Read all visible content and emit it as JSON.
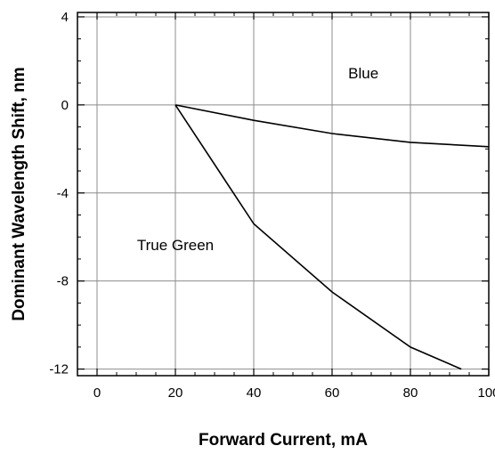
{
  "chart_data": {
    "type": "line",
    "title": "",
    "xlabel": "Forward Current, mA",
    "ylabel": "Dominant Wavelength Shift, nm",
    "xlim": [
      -5,
      100
    ],
    "ylim": [
      -12.3,
      4.2
    ],
    "x_ticks": [
      0,
      20,
      40,
      60,
      80,
      100
    ],
    "y_ticks": [
      4,
      0,
      -4,
      -8,
      -12
    ],
    "grid": true,
    "series": [
      {
        "name": "Blue",
        "x": [
          20,
          40,
          60,
          80,
          100
        ],
        "y": [
          0,
          -0.7,
          -1.3,
          -1.7,
          -1.9
        ]
      },
      {
        "name": "True Green",
        "x": [
          20,
          40,
          60,
          80,
          93
        ],
        "y": [
          0,
          -5.4,
          -8.5,
          -11.0,
          -12.0
        ]
      }
    ],
    "annotations": [
      {
        "text": "Blue",
        "x": 68,
        "y": 1.2
      },
      {
        "text": "True Green",
        "x": 20,
        "y": -6.6
      }
    ]
  }
}
